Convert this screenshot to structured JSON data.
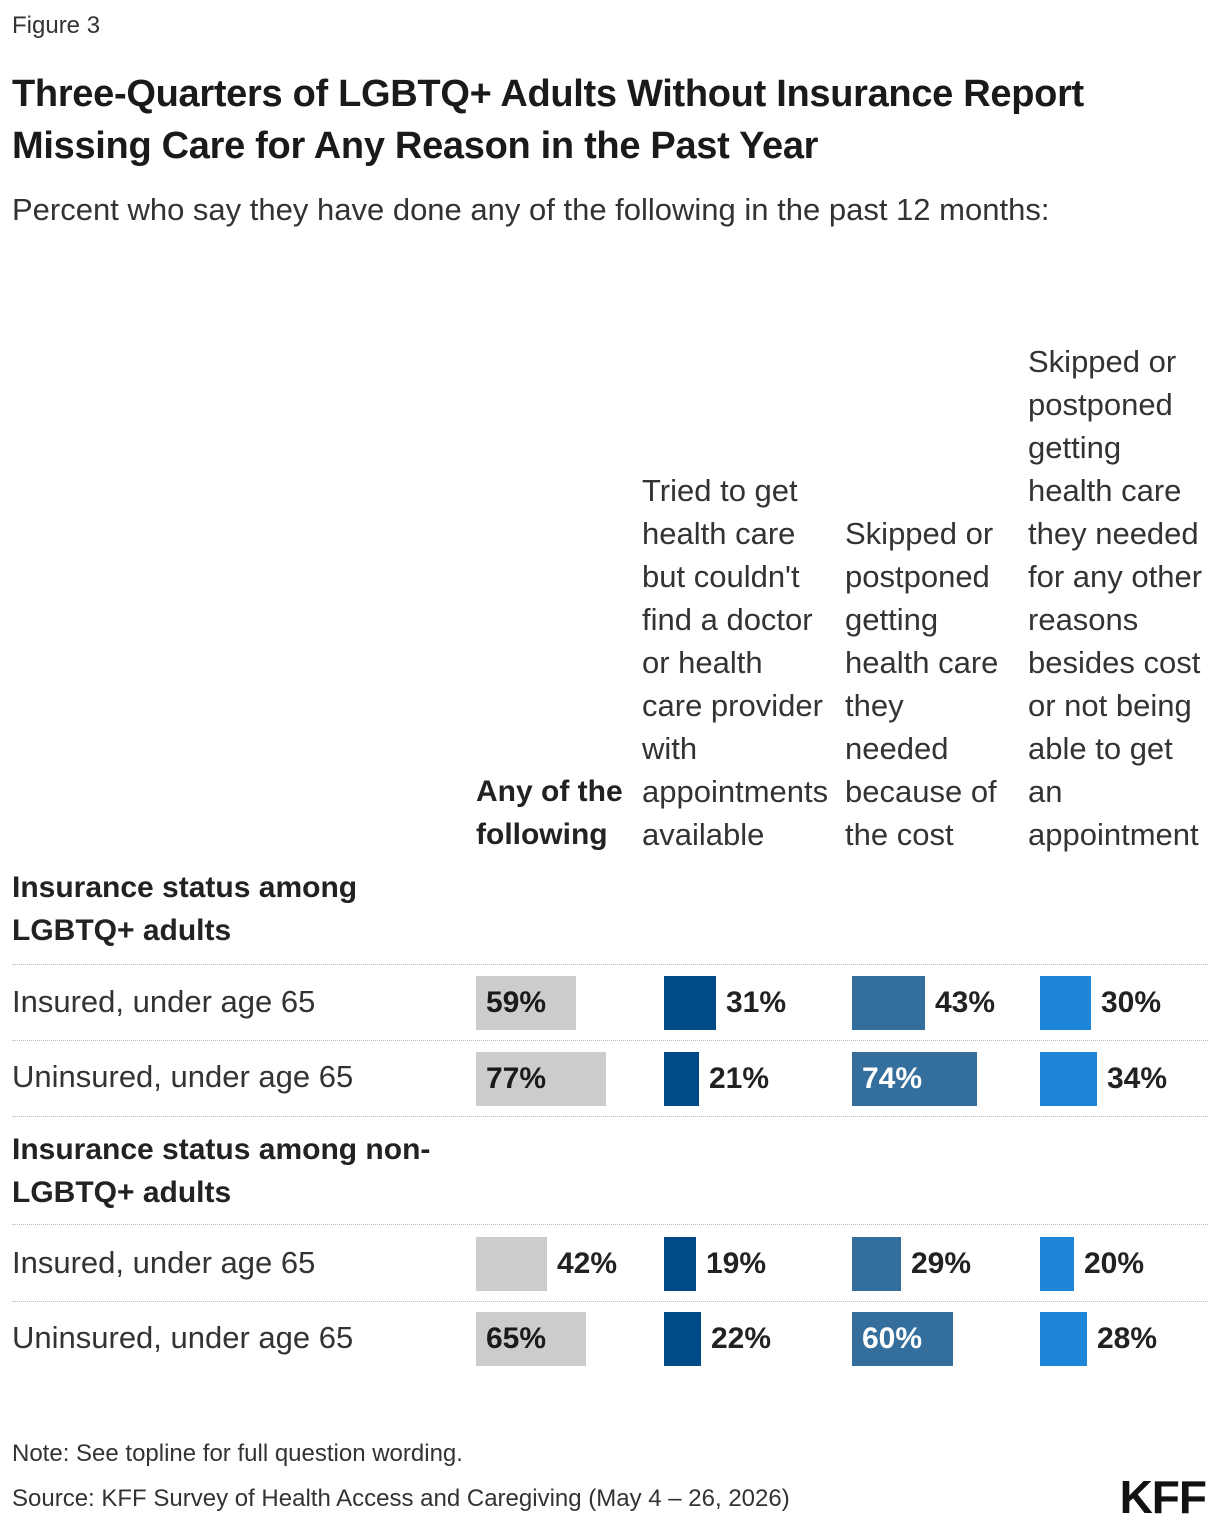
{
  "figure_label": "Figure 3",
  "title": "Three-Quarters of LGBTQ+ Adults Without Insurance Report Missing Care for Any Reason in the Past Year",
  "subtitle": "Percent who say they have done any of the following in the past 12 months:",
  "columns": [
    {
      "label": "Any of the following",
      "bold": true,
      "color": "#cccccc"
    },
    {
      "label": "Tried to get health care but couldn't find a doctor or health care provider with appointments available",
      "bold": false,
      "color": "#004b87"
    },
    {
      "label": "Skipped or postponed getting health care they needed because of the cost",
      "bold": false,
      "color": "#336e9c"
    },
    {
      "label": "Skipped or postponed getting health care they needed for any other reasons besides cost or not being able to get an appointment",
      "bold": false,
      "color": "#1e86d8"
    }
  ],
  "groups": [
    {
      "label": "Insurance status among LGBTQ+ adults",
      "rows": [
        {
          "label": "Insured, under age 65",
          "values": [
            59,
            31,
            43,
            30
          ]
        },
        {
          "label": "Uninsured, under age 65",
          "values": [
            77,
            21,
            74,
            34
          ]
        }
      ]
    },
    {
      "label": "Insurance status among non-LGBTQ+ adults",
      "rows": [
        {
          "label": "Insured, under age 65",
          "values": [
            42,
            19,
            29,
            20
          ]
        },
        {
          "label": "Uninsured, under age 65",
          "values": [
            65,
            22,
            60,
            28
          ]
        }
      ]
    }
  ],
  "chart_data": {
    "type": "bar",
    "title": "Three-Quarters of LGBTQ+ Adults Without Insurance Report Missing Care for Any Reason in the Past Year",
    "subtitle": "Percent who say they have done any of the following in the past 12 months:",
    "categories": [
      "Insurance status among LGBTQ+ adults: Insured, under age 65",
      "Insurance status among LGBTQ+ adults: Uninsured, under age 65",
      "Insurance status among non-LGBTQ+ adults: Insured, under age 65",
      "Insurance status among non-LGBTQ+ adults: Uninsured, under age 65"
    ],
    "series": [
      {
        "name": "Any of the following",
        "values": [
          59,
          77,
          42,
          65
        ]
      },
      {
        "name": "Tried to get health care but couldn't find a doctor or health care provider with appointments available",
        "values": [
          31,
          21,
          19,
          22
        ]
      },
      {
        "name": "Skipped or postponed getting health care they needed because of the cost",
        "values": [
          43,
          74,
          29,
          60
        ]
      },
      {
        "name": "Skipped or postponed getting health care they needed for any other reasons besides cost or not being able to get an appointment",
        "values": [
          30,
          34,
          20,
          28
        ]
      }
    ],
    "unit": "%"
  },
  "note": "Note: See topline for full question wording.",
  "source": "Source: KFF Survey of Health Access and Caregiving (May 4 – 26, 2026)",
  "logo": "KFF"
}
